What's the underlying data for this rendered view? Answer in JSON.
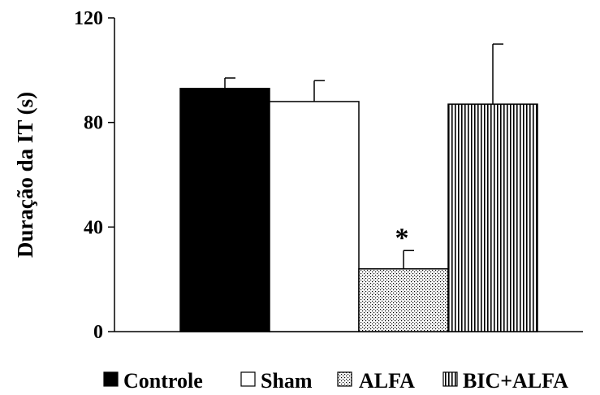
{
  "chart_data": {
    "type": "bar",
    "title": "",
    "xlabel": "",
    "ylabel": "Duração da IT (s)",
    "ylim": [
      0,
      120
    ],
    "yticks": [
      0,
      40,
      80,
      120
    ],
    "grid": false,
    "legend_position": "bottom",
    "series": [
      {
        "name": "Controle",
        "value": 93,
        "error": 4,
        "fill": "solid-black"
      },
      {
        "name": "Sham",
        "value": 88,
        "error": 8,
        "fill": "white"
      },
      {
        "name": "ALFA",
        "value": 24,
        "error": 7,
        "fill": "dotted"
      },
      {
        "name": "BIC+ALFA",
        "value": 87,
        "error": 23,
        "fill": "vertical-stripes"
      }
    ],
    "annotations": [
      {
        "text": "*",
        "series": "ALFA"
      }
    ]
  },
  "colors": {
    "ink": "#000000",
    "background": "#ffffff"
  }
}
